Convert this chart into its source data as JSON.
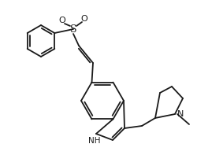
{
  "background": "#ffffff",
  "line_color": "#1a1a1a",
  "line_width": 1.3,
  "figsize": [
    2.51,
    1.97
  ],
  "dpi": 100,
  "xlim": [
    0,
    251
  ],
  "ylim": [
    0,
    197
  ]
}
